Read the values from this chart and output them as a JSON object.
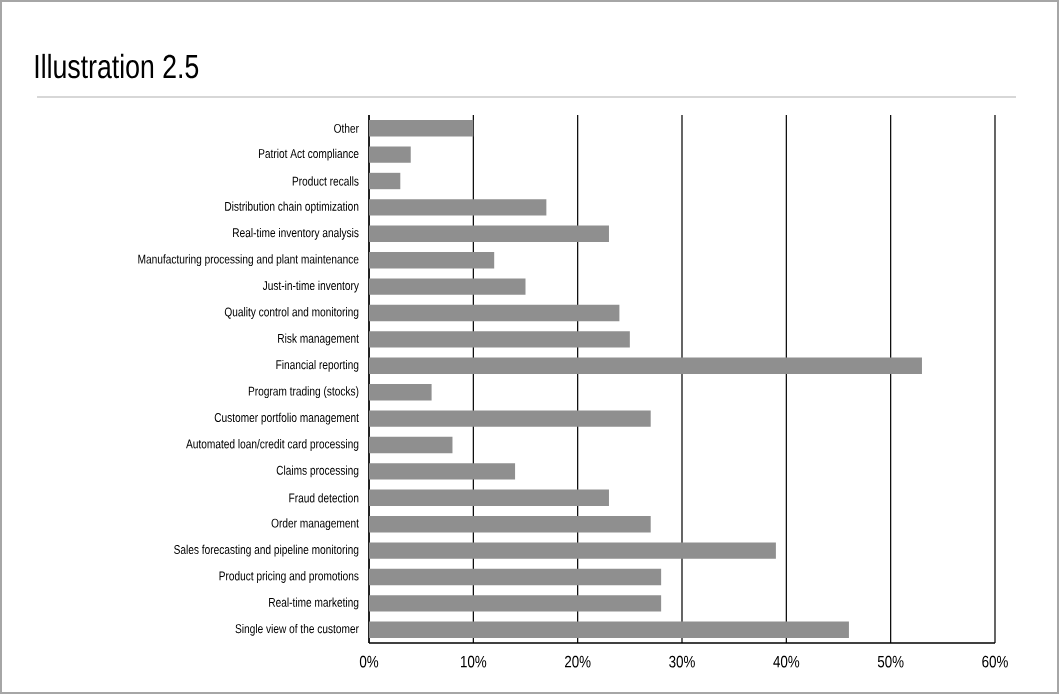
{
  "chart_data": {
    "type": "bar",
    "orientation": "horizontal",
    "title": "Illustration 2.5",
    "categories": [
      "Other",
      "Patriot Act compliance",
      "Product recalls",
      "Distribution chain optimization",
      "Real-time inventory analysis",
      "Manufacturing processing and plant maintenance",
      "Just-in-time inventory",
      "Quality control and monitoring",
      "Risk management",
      "Financial reporting",
      "Program trading (stocks)",
      "Customer portfolio management",
      "Automated loan/credit card processing",
      "Claims processing",
      "Fraud detection",
      "Order management",
      "Sales forecasting and pipeline monitoring",
      "Product pricing and promotions",
      "Real-time marketing",
      "Single view of the customer"
    ],
    "values": [
      10,
      4,
      3,
      17,
      23,
      12,
      15,
      24,
      25,
      53,
      6,
      27,
      8,
      14,
      23,
      27,
      39,
      28,
      28,
      46
    ],
    "color": "#8f8f8f",
    "xlim": [
      0,
      60
    ],
    "xticks": [
      {
        "value": 0,
        "label": "0%"
      },
      {
        "value": 10,
        "label": "10%"
      },
      {
        "value": 20,
        "label": "20%"
      },
      {
        "value": 30,
        "label": "30%"
      },
      {
        "value": 40,
        "label": "40%"
      },
      {
        "value": 50,
        "label": "50%"
      },
      {
        "value": 60,
        "label": "60%"
      }
    ],
    "grid": "x"
  }
}
